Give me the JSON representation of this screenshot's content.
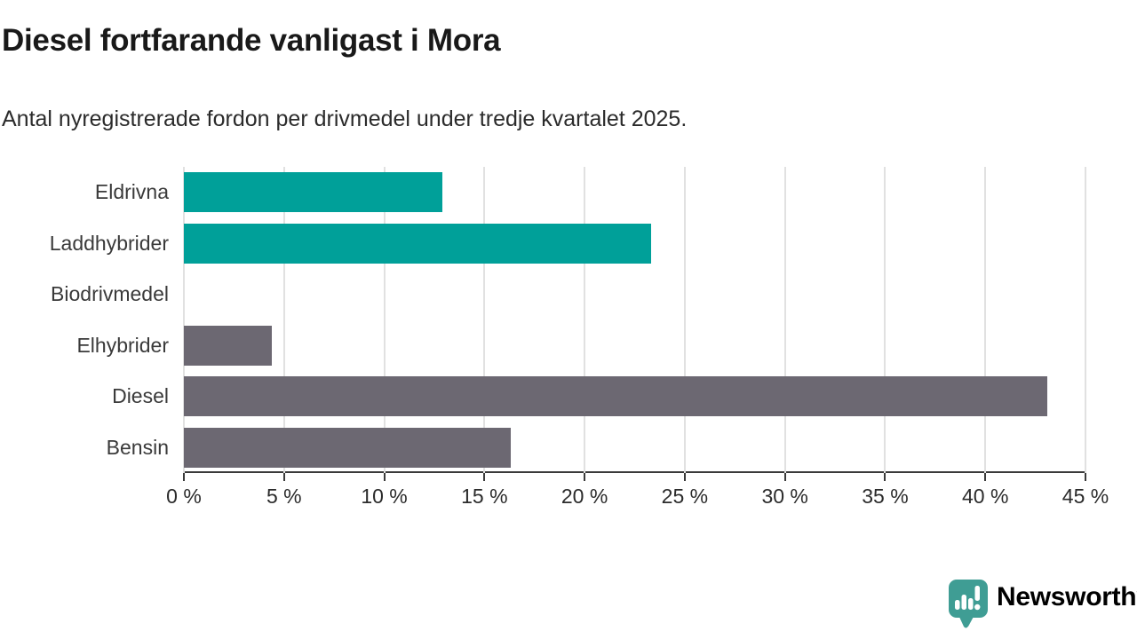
{
  "header": {
    "title": "Diesel fortfarande vanligast i Mora",
    "subtitle": "Antal nyregistrerade fordon per drivmedel under tredje kvartalet 2025."
  },
  "chart_data": {
    "type": "bar",
    "orientation": "horizontal",
    "title": "Diesel fortfarande vanligast i Mora",
    "subtitle": "Antal nyregistrerade fordon per drivmedel under tredje kvartalet 2025.",
    "categories": [
      "Eldrivna",
      "Laddhybrider",
      "Biodrivmedel",
      "Elhybrider",
      "Diesel",
      "Bensin"
    ],
    "values": [
      12.9,
      23.3,
      0,
      4.4,
      43.1,
      16.3
    ],
    "unit": "%",
    "xlim": [
      0,
      45
    ],
    "x_ticks": [
      0,
      5,
      10,
      15,
      20,
      25,
      30,
      35,
      40,
      45
    ],
    "x_tick_labels": [
      "0 %",
      "5 %",
      "10 %",
      "15 %",
      "20 %",
      "25 %",
      "30 %",
      "35 %",
      "40 %",
      "45 %"
    ],
    "bar_colors": [
      "#00a099",
      "#00a099",
      "#6c6872",
      "#6c6872",
      "#6c6872",
      "#6c6872"
    ],
    "grid": true,
    "legend": null
  },
  "footer": {
    "brand": "Newsworthy"
  },
  "colors": {
    "teal_bar": "#00a099",
    "gray_bar": "#6c6872",
    "gridline": "#e1e1e1",
    "axis": "#3a3a3a",
    "logo_teal": "#3f9d94",
    "title_text": "#191919",
    "body_text": "#2b2b2b"
  }
}
